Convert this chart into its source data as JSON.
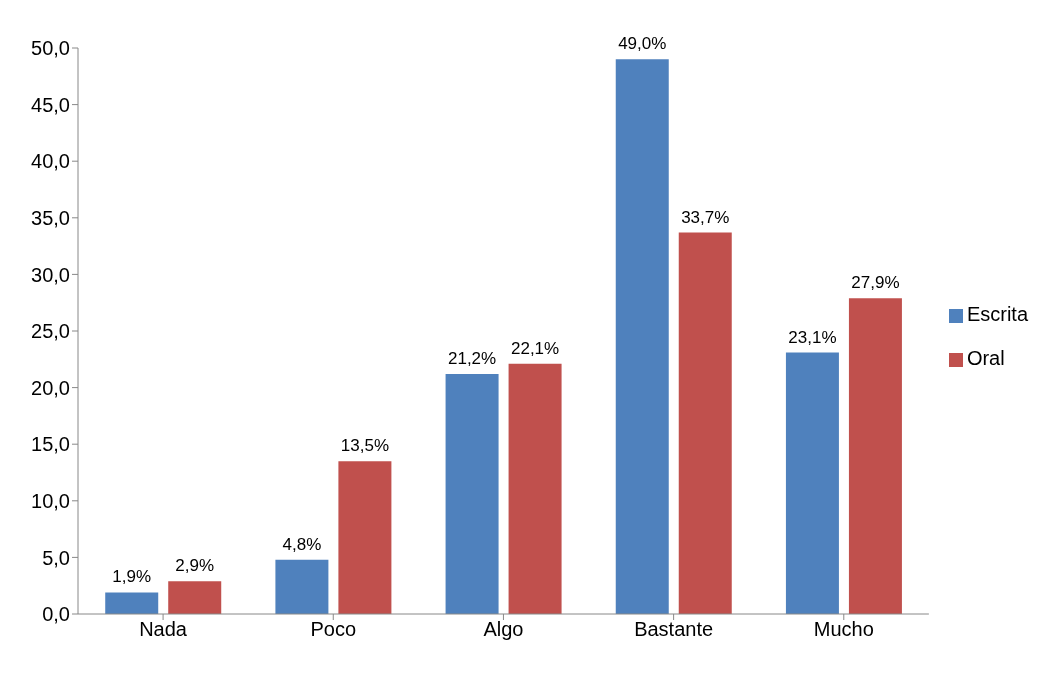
{
  "chart_data": {
    "type": "bar",
    "categories": [
      "Nada",
      "Poco",
      "Algo",
      "Bastante",
      "Mucho"
    ],
    "series": [
      {
        "name": "Escrita",
        "color": "#4f81bd",
        "values": [
          1.9,
          4.8,
          21.2,
          49.0,
          23.1
        ],
        "value_labels": [
          "1,9%",
          "4,8%",
          "21,2%",
          "49,0%",
          "23,1%"
        ]
      },
      {
        "name": "Oral",
        "color": "#c0504d",
        "values": [
          2.9,
          13.5,
          22.1,
          33.7,
          27.9
        ],
        "value_labels": [
          "2,9%",
          "13,5%",
          "22,1%",
          "33,7%",
          "27,9%"
        ]
      }
    ],
    "ylim": [
      0,
      50
    ],
    "yticks": [
      {
        "value": 0,
        "label": "0,0"
      },
      {
        "value": 5,
        "label": "5,0"
      },
      {
        "value": 10,
        "label": "10,0"
      },
      {
        "value": 15,
        "label": "15,0"
      },
      {
        "value": 20,
        "label": "20,0"
      },
      {
        "value": 25,
        "label": "25,0"
      },
      {
        "value": 30,
        "label": "30,0"
      },
      {
        "value": 35,
        "label": "35,0"
      },
      {
        "value": 40,
        "label": "40,0"
      },
      {
        "value": 45,
        "label": "45,0"
      },
      {
        "value": 50,
        "label": "50,0"
      }
    ],
    "grid": false,
    "legend": "right"
  }
}
